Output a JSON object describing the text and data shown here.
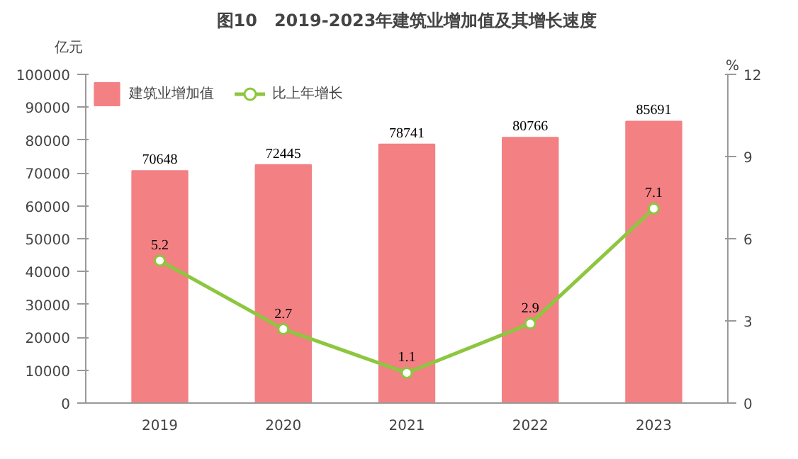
{
  "chart_data": {
    "type": "bar",
    "title": "图10　2019-2023年建筑业增加值及其增长速度",
    "ylabel": "亿元",
    "y2label": "%",
    "categories": [
      "2019",
      "2020",
      "2021",
      "2022",
      "2023"
    ],
    "series": [
      {
        "name": "建筑业增加值",
        "color": "#f38083",
        "values": [
          70648,
          72445,
          78741,
          80766,
          85691
        ]
      },
      {
        "name": "比上年增长",
        "type": "line",
        "axis": "y2",
        "color": "#8dc63f",
        "marker": "circle",
        "values": [
          5.2,
          2.7,
          1.1,
          2.9,
          7.1
        ]
      }
    ],
    "ylim": [
      0,
      100000
    ],
    "yticks": [
      0,
      10000,
      20000,
      30000,
      40000,
      50000,
      60000,
      70000,
      80000,
      90000,
      100000
    ],
    "y2lim": [
      0,
      12
    ],
    "y2ticks": [
      0,
      3,
      6,
      9,
      12
    ],
    "data_labels": true,
    "legend": "top left",
    "grid": false
  }
}
